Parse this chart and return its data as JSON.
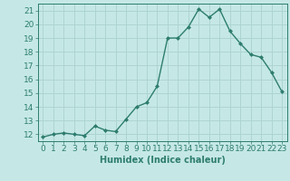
{
  "x": [
    0,
    1,
    2,
    3,
    4,
    5,
    6,
    7,
    8,
    9,
    10,
    11,
    12,
    13,
    14,
    15,
    16,
    17,
    18,
    19,
    20,
    21,
    22,
    23
  ],
  "y": [
    11.8,
    12.0,
    12.1,
    12.0,
    11.9,
    12.6,
    12.3,
    12.2,
    13.1,
    14.0,
    14.3,
    15.5,
    19.0,
    19.0,
    19.8,
    21.1,
    20.5,
    21.1,
    19.5,
    18.6,
    17.8,
    17.6,
    16.5,
    15.1
  ],
  "line_color": "#2e7d6e",
  "marker": "D",
  "marker_size": 2.0,
  "bg_color": "#c5e8e6",
  "grid_color": "#aed4d2",
  "xlabel": "Humidex (Indice chaleur)",
  "xlabel_fontsize": 7,
  "tick_fontsize": 6.5,
  "ylim": [
    11.5,
    21.5
  ],
  "xlim": [
    -0.5,
    23.5
  ],
  "yticks": [
    12,
    13,
    14,
    15,
    16,
    17,
    18,
    19,
    20,
    21
  ],
  "xticks": [
    0,
    1,
    2,
    3,
    4,
    5,
    6,
    7,
    8,
    9,
    10,
    11,
    12,
    13,
    14,
    15,
    16,
    17,
    18,
    19,
    20,
    21,
    22,
    23
  ],
  "line_width": 1.0
}
